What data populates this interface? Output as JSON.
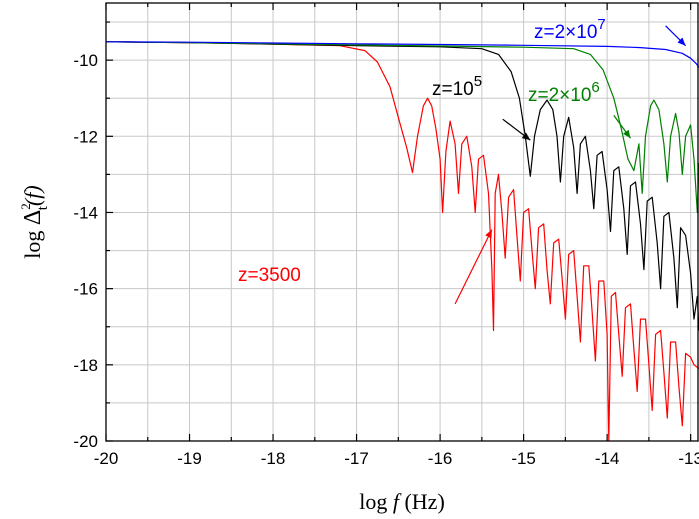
{
  "chart_data": {
    "type": "line",
    "xlabel": {
      "prefix": "log ",
      "var": "f",
      "suffix": " (Hz)"
    },
    "ylabel": {
      "prefix": "log ",
      "delta": "Δ",
      "sup": "2",
      "sub": "t",
      "func": "(f)"
    },
    "xlim": [
      -20,
      -12.9
    ],
    "ylim": [
      -20,
      -8.5
    ],
    "xticks": [
      "-20",
      "-19",
      "-18",
      "-17",
      "-16",
      "-15",
      "-14",
      "-13"
    ],
    "yticks": [
      "-10",
      "-12",
      "-14",
      "-16",
      "-18",
      "-20"
    ],
    "grid": true,
    "series": [
      {
        "name": "z=3500",
        "color": "#ff0000",
        "points": [
          [
            -20,
            -9.52
          ],
          [
            -19,
            -9.54
          ],
          [
            -18,
            -9.58
          ],
          [
            -17.2,
            -9.62
          ],
          [
            -16.9,
            -9.75
          ],
          [
            -16.75,
            -10.05
          ],
          [
            -16.6,
            -10.7
          ],
          [
            -16.5,
            -11.5
          ],
          [
            -16.4,
            -12.3
          ],
          [
            -16.33,
            -12.95
          ],
          [
            -16.27,
            -12.0
          ],
          [
            -16.2,
            -11.2
          ],
          [
            -16.15,
            -11.0
          ],
          [
            -16.1,
            -11.2
          ],
          [
            -16.05,
            -11.8
          ],
          [
            -16.0,
            -12.6
          ],
          [
            -15.97,
            -14.0
          ],
          [
            -15.93,
            -12.4
          ],
          [
            -15.88,
            -11.6
          ],
          [
            -15.82,
            -12.2
          ],
          [
            -15.78,
            -13.5
          ],
          [
            -15.74,
            -12.2
          ],
          [
            -15.68,
            -12.0
          ],
          [
            -15.62,
            -12.8
          ],
          [
            -15.58,
            -14.0
          ],
          [
            -15.54,
            -12.6
          ],
          [
            -15.48,
            -12.5
          ],
          [
            -15.42,
            -13.5
          ],
          [
            -15.38,
            -15.5
          ],
          [
            -15.36,
            -17.1
          ],
          [
            -15.34,
            -13.5
          ],
          [
            -15.3,
            -13.0
          ],
          [
            -15.26,
            -14.0
          ],
          [
            -15.22,
            -15.2
          ],
          [
            -15.18,
            -13.6
          ],
          [
            -15.12,
            -13.4
          ],
          [
            -15.08,
            -14.6
          ],
          [
            -15.04,
            -15.8
          ],
          [
            -15.0,
            -14.0
          ],
          [
            -14.94,
            -13.9
          ],
          [
            -14.9,
            -15.0
          ],
          [
            -14.86,
            -16.0
          ],
          [
            -14.82,
            -14.4
          ],
          [
            -14.76,
            -14.3
          ],
          [
            -14.72,
            -15.5
          ],
          [
            -14.68,
            -16.4
          ],
          [
            -14.64,
            -14.8
          ],
          [
            -14.58,
            -14.7
          ],
          [
            -14.54,
            -15.7
          ],
          [
            -14.5,
            -16.8
          ],
          [
            -14.46,
            -15.1
          ],
          [
            -14.4,
            -15.0
          ],
          [
            -14.36,
            -16.2
          ],
          [
            -14.32,
            -17.4
          ],
          [
            -14.28,
            -15.4
          ],
          [
            -14.22,
            -15.4
          ],
          [
            -14.18,
            -16.6
          ],
          [
            -14.14,
            -17.9
          ],
          [
            -14.1,
            -15.8
          ],
          [
            -14.04,
            -15.8
          ],
          [
            -14.0,
            -17.2
          ],
          [
            -13.98,
            -20.0
          ],
          [
            -13.95,
            -16.2
          ],
          [
            -13.9,
            -16.1
          ],
          [
            -13.86,
            -17.2
          ],
          [
            -13.82,
            -18.3
          ],
          [
            -13.78,
            -16.5
          ],
          [
            -13.72,
            -16.4
          ],
          [
            -13.68,
            -17.6
          ],
          [
            -13.64,
            -18.7
          ],
          [
            -13.6,
            -16.8
          ],
          [
            -13.54,
            -16.8
          ],
          [
            -13.5,
            -18.0
          ],
          [
            -13.46,
            -19.2
          ],
          [
            -13.42,
            -17.2
          ],
          [
            -13.36,
            -17.1
          ],
          [
            -13.32,
            -18.2
          ],
          [
            -13.28,
            -19.4
          ],
          [
            -13.24,
            -17.4
          ],
          [
            -13.18,
            -17.4
          ],
          [
            -13.14,
            -18.6
          ],
          [
            -13.1,
            -19.6
          ],
          [
            -13.06,
            -17.7
          ],
          [
            -13.0,
            -17.8
          ],
          [
            -12.96,
            -18.0
          ],
          [
            -12.9,
            -18.1
          ]
        ]
      },
      {
        "name": "z=10",
        "sup": "5",
        "color": "#000000",
        "points": [
          [
            -20,
            -9.52
          ],
          [
            -19,
            -9.54
          ],
          [
            -18,
            -9.58
          ],
          [
            -17,
            -9.62
          ],
          [
            -16,
            -9.65
          ],
          [
            -15.5,
            -9.7
          ],
          [
            -15.3,
            -9.85
          ],
          [
            -15.15,
            -10.3
          ],
          [
            -15.05,
            -11.0
          ],
          [
            -14.98,
            -12.0
          ],
          [
            -14.92,
            -13.05
          ],
          [
            -14.87,
            -12.0
          ],
          [
            -14.8,
            -11.3
          ],
          [
            -14.72,
            -11.05
          ],
          [
            -14.65,
            -11.3
          ],
          [
            -14.6,
            -12.0
          ],
          [
            -14.56,
            -13.2
          ],
          [
            -14.52,
            -12.0
          ],
          [
            -14.46,
            -11.5
          ],
          [
            -14.4,
            -12.3
          ],
          [
            -14.36,
            -13.5
          ],
          [
            -14.32,
            -12.2
          ],
          [
            -14.26,
            -12.0
          ],
          [
            -14.2,
            -12.9
          ],
          [
            -14.16,
            -13.9
          ],
          [
            -14.12,
            -12.5
          ],
          [
            -14.06,
            -12.4
          ],
          [
            -14.0,
            -13.4
          ],
          [
            -13.96,
            -14.5
          ],
          [
            -13.92,
            -12.9
          ],
          [
            -13.86,
            -12.8
          ],
          [
            -13.8,
            -13.9
          ],
          [
            -13.76,
            -15.1
          ],
          [
            -13.72,
            -13.3
          ],
          [
            -13.66,
            -13.2
          ],
          [
            -13.6,
            -14.3
          ],
          [
            -13.56,
            -15.5
          ],
          [
            -13.52,
            -13.7
          ],
          [
            -13.46,
            -13.6
          ],
          [
            -13.4,
            -14.8
          ],
          [
            -13.36,
            -16.0
          ],
          [
            -13.32,
            -14.1
          ],
          [
            -13.26,
            -14.0
          ],
          [
            -13.2,
            -15.2
          ],
          [
            -13.16,
            -16.5
          ],
          [
            -13.12,
            -14.4
          ],
          [
            -13.06,
            -14.6
          ],
          [
            -13.0,
            -15.6
          ],
          [
            -12.96,
            -16.8
          ],
          [
            -12.92,
            -16.2
          ],
          [
            -12.9,
            -17.1
          ]
        ]
      },
      {
        "name": "z=2×10",
        "sup": "6",
        "color": "#008000",
        "points": [
          [
            -20,
            -9.52
          ],
          [
            -19,
            -9.54
          ],
          [
            -18,
            -9.57
          ],
          [
            -17,
            -9.6
          ],
          [
            -16,
            -9.63
          ],
          [
            -15,
            -9.66
          ],
          [
            -14.4,
            -9.7
          ],
          [
            -14.2,
            -9.85
          ],
          [
            -14.05,
            -10.25
          ],
          [
            -13.92,
            -11.0
          ],
          [
            -13.83,
            -11.8
          ],
          [
            -13.75,
            -12.6
          ],
          [
            -13.68,
            -12.9
          ],
          [
            -13.62,
            -12.2
          ],
          [
            -13.58,
            -13.5
          ],
          [
            -13.54,
            -12.0
          ],
          [
            -13.48,
            -11.2
          ],
          [
            -13.44,
            -11.05
          ],
          [
            -13.38,
            -11.3
          ],
          [
            -13.32,
            -12.2
          ],
          [
            -13.28,
            -13.2
          ],
          [
            -13.24,
            -12.0
          ],
          [
            -13.18,
            -11.4
          ],
          [
            -13.14,
            -11.9
          ],
          [
            -13.1,
            -13.0
          ],
          [
            -13.06,
            -12.0
          ],
          [
            -13.0,
            -11.7
          ],
          [
            -12.96,
            -12.6
          ],
          [
            -12.92,
            -14.0
          ],
          [
            -12.9,
            -12.7
          ]
        ]
      },
      {
        "name": "z=2×10",
        "sup": "7",
        "color": "#0000ff",
        "points": [
          [
            -20,
            -9.52
          ],
          [
            -19,
            -9.53
          ],
          [
            -18,
            -9.55
          ],
          [
            -17,
            -9.57
          ],
          [
            -16,
            -9.59
          ],
          [
            -15,
            -9.61
          ],
          [
            -14,
            -9.64
          ],
          [
            -13.6,
            -9.67
          ],
          [
            -13.3,
            -9.72
          ],
          [
            -13.1,
            -9.82
          ],
          [
            -13.0,
            -9.95
          ],
          [
            -12.93,
            -10.1
          ],
          [
            -12.9,
            -10.2
          ]
        ]
      }
    ],
    "annotations": [
      {
        "series": 0,
        "text": "z=3500",
        "arrow_from": [
          -15.82,
          -16.4
        ],
        "arrow_to": [
          -15.38,
          -14.45
        ]
      },
      {
        "series": 1,
        "text": "z=10",
        "sup": "5",
        "arrow_from": [
          -15.25,
          -11.55
        ],
        "arrow_to": [
          -14.92,
          -12.1
        ]
      },
      {
        "series": 2,
        "text": "z=2×10",
        "sup": "6",
        "arrow_from": [
          -13.92,
          -11.45
        ],
        "arrow_to": [
          -13.72,
          -12.05
        ]
      },
      {
        "series": 3,
        "text": "z=2×10",
        "sup": "7",
        "arrow_from": [
          -13.3,
          -9.1
        ],
        "arrow_to": [
          -13.06,
          -9.62
        ]
      }
    ]
  }
}
